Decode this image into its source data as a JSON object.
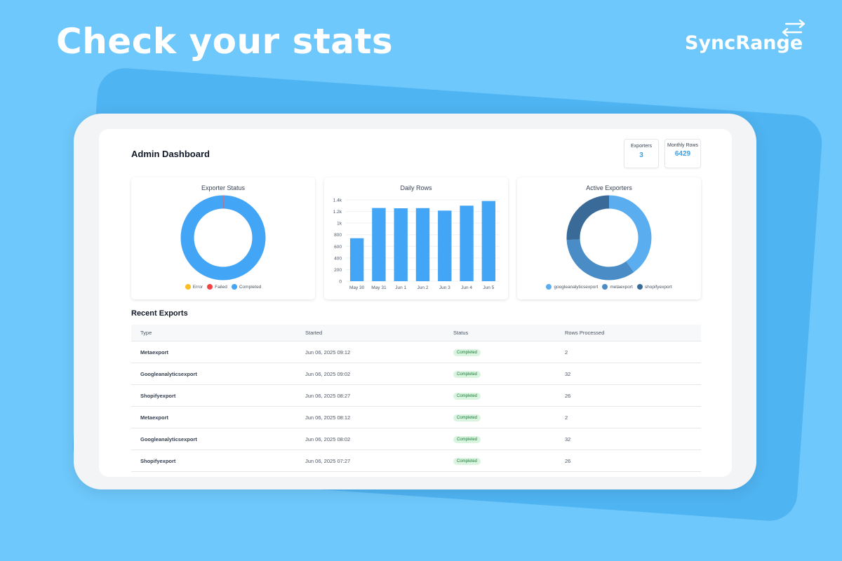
{
  "promo": {
    "headline": "Check your stats",
    "brand": "SyncRange"
  },
  "dashboard": {
    "title": "Admin Dashboard",
    "stats": [
      {
        "label": "Exporters",
        "value": "3"
      },
      {
        "label": "Monthly Rows",
        "value": "6429"
      }
    ]
  },
  "charts": {
    "exporter_status": {
      "title": "Exporter Status",
      "legend": [
        {
          "label": "Error",
          "color": "#fbbf24"
        },
        {
          "label": "Failed",
          "color": "#ef4444"
        },
        {
          "label": "Completed",
          "color": "#42a5f5"
        }
      ]
    },
    "daily_rows": {
      "title": "Daily Rows"
    },
    "active_exporters": {
      "title": "Active Exporters",
      "legend": [
        {
          "label": "googleanalyticsexport",
          "color": "#5aaef0"
        },
        {
          "label": "metaexport",
          "color": "#4a8cc6"
        },
        {
          "label": "shopifyexport",
          "color": "#396a98"
        }
      ]
    }
  },
  "chart_data": [
    {
      "type": "pie",
      "title": "Exporter Status",
      "categories": [
        "Error",
        "Failed",
        "Completed"
      ],
      "values": [
        0,
        0.2,
        99.8
      ],
      "colors": [
        "#fbbf24",
        "#ef4444",
        "#42a5f5"
      ],
      "legend": "bottom"
    },
    {
      "type": "bar",
      "title": "Daily Rows",
      "categories": [
        "May 30",
        "May 31",
        "Jun 1",
        "Jun 2",
        "Jun 3",
        "Jun 4",
        "Jun 5"
      ],
      "values": [
        740,
        1260,
        1255,
        1258,
        1215,
        1300,
        1380
      ],
      "ylim": [
        0,
        1400
      ],
      "yticks": [
        "0",
        "200",
        "400",
        "600",
        "800",
        "1k",
        "1.2k",
        "1.4k"
      ],
      "color": "#42a5f5",
      "grid": true
    },
    {
      "type": "pie",
      "title": "Active Exporters",
      "categories": [
        "googleanalyticsexport",
        "metaexport",
        "shopifyexport"
      ],
      "values": [
        40,
        34,
        26
      ],
      "colors": [
        "#5aaef0",
        "#4a8cc6",
        "#396a98"
      ],
      "legend": "bottom"
    }
  ],
  "recent_exports": {
    "title": "Recent Exports",
    "columns": [
      "Type",
      "Started",
      "Status",
      "Rows Processed"
    ],
    "rows": [
      {
        "type": "Metaexport",
        "started": "Jun 06, 2025 09:12",
        "status": "Completed",
        "rows": "2"
      },
      {
        "type": "Googleanalyticsexport",
        "started": "Jun 06, 2025 09:02",
        "status": "Completed",
        "rows": "32"
      },
      {
        "type": "Shopifyexport",
        "started": "Jun 06, 2025 08:27",
        "status": "Completed",
        "rows": "26"
      },
      {
        "type": "Metaexport",
        "started": "Jun 06, 2025 08:12",
        "status": "Completed",
        "rows": "2"
      },
      {
        "type": "Googleanalyticsexport",
        "started": "Jun 06, 2025 08:02",
        "status": "Completed",
        "rows": "32"
      },
      {
        "type": "Shopifyexport",
        "started": "Jun 06, 2025 07:27",
        "status": "Completed",
        "rows": "26"
      }
    ]
  }
}
